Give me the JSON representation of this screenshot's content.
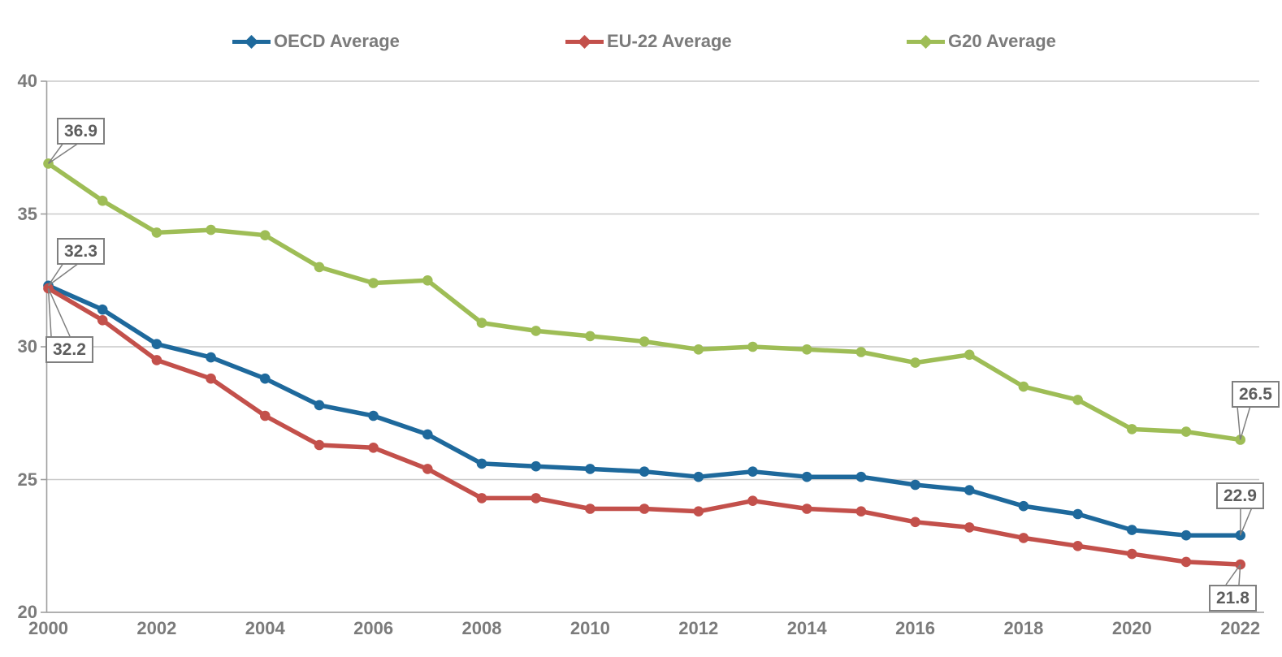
{
  "legend": [
    {
      "label": "OECD Average",
      "color": "#1E699C"
    },
    {
      "label": "EU-22 Average",
      "color": "#C3504B"
    },
    {
      "label": "G20 Average",
      "color": "#9EBD56"
    }
  ],
  "chart_data": {
    "type": "line",
    "x": [
      2000,
      2001,
      2002,
      2003,
      2004,
      2005,
      2006,
      2007,
      2008,
      2009,
      2010,
      2011,
      2012,
      2013,
      2014,
      2015,
      2016,
      2017,
      2018,
      2019,
      2020,
      2021,
      2022
    ],
    "series": [
      {
        "name": "OECD Average",
        "color": "#1E699C",
        "values": [
          32.3,
          31.4,
          30.1,
          29.6,
          28.8,
          27.8,
          27.4,
          26.7,
          25.6,
          25.5,
          25.4,
          25.3,
          25.1,
          25.3,
          25.1,
          25.1,
          24.8,
          24.6,
          24.0,
          23.7,
          23.1,
          22.9,
          22.9
        ]
      },
      {
        "name": "EU-22 Average",
        "color": "#C3504B",
        "values": [
          32.2,
          31.0,
          29.5,
          28.8,
          27.4,
          26.3,
          26.2,
          25.4,
          24.3,
          24.3,
          23.9,
          23.9,
          23.8,
          24.2,
          23.9,
          23.8,
          23.4,
          23.2,
          22.8,
          22.5,
          22.2,
          21.9,
          21.8
        ]
      },
      {
        "name": "G20 Average",
        "color": "#9EBD56",
        "values": [
          36.9,
          35.5,
          34.3,
          34.4,
          34.2,
          33.0,
          32.4,
          32.5,
          30.9,
          30.6,
          30.4,
          30.2,
          29.9,
          30.0,
          29.9,
          29.8,
          29.4,
          29.7,
          28.5,
          28.0,
          26.9,
          26.8,
          26.5
        ]
      }
    ],
    "title": "",
    "xlabel": "",
    "ylabel": "",
    "ylim": [
      20,
      40
    ],
    "yticks": [
      20,
      25,
      30,
      35,
      40
    ],
    "xticks": [
      2000,
      2002,
      2004,
      2006,
      2008,
      2010,
      2012,
      2014,
      2016,
      2018,
      2020,
      2022
    ],
    "grid": "horizontal",
    "legend_position": "top",
    "annotations": [
      {
        "series": "G20 Average",
        "year": 2000,
        "label": "36.9"
      },
      {
        "series": "OECD Average",
        "year": 2000,
        "label": "32.3"
      },
      {
        "series": "EU-22 Average",
        "year": 2000,
        "label": "32.2"
      },
      {
        "series": "G20 Average",
        "year": 2022,
        "label": "26.5"
      },
      {
        "series": "OECD Average",
        "year": 2022,
        "label": "22.9"
      },
      {
        "series": "EU-22 Average",
        "year": 2022,
        "label": "21.8"
      }
    ]
  },
  "colors": {
    "background": "#FFFFFF",
    "gridline": "#C9C9C9",
    "axis": "#9E9E9E",
    "tick_label": "#7B7B7B",
    "legend_text": "#7B7B7B",
    "callout_border": "#7F7F7F",
    "callout_text": "#5D5D5D",
    "leader_line": "#7F7F7F"
  }
}
